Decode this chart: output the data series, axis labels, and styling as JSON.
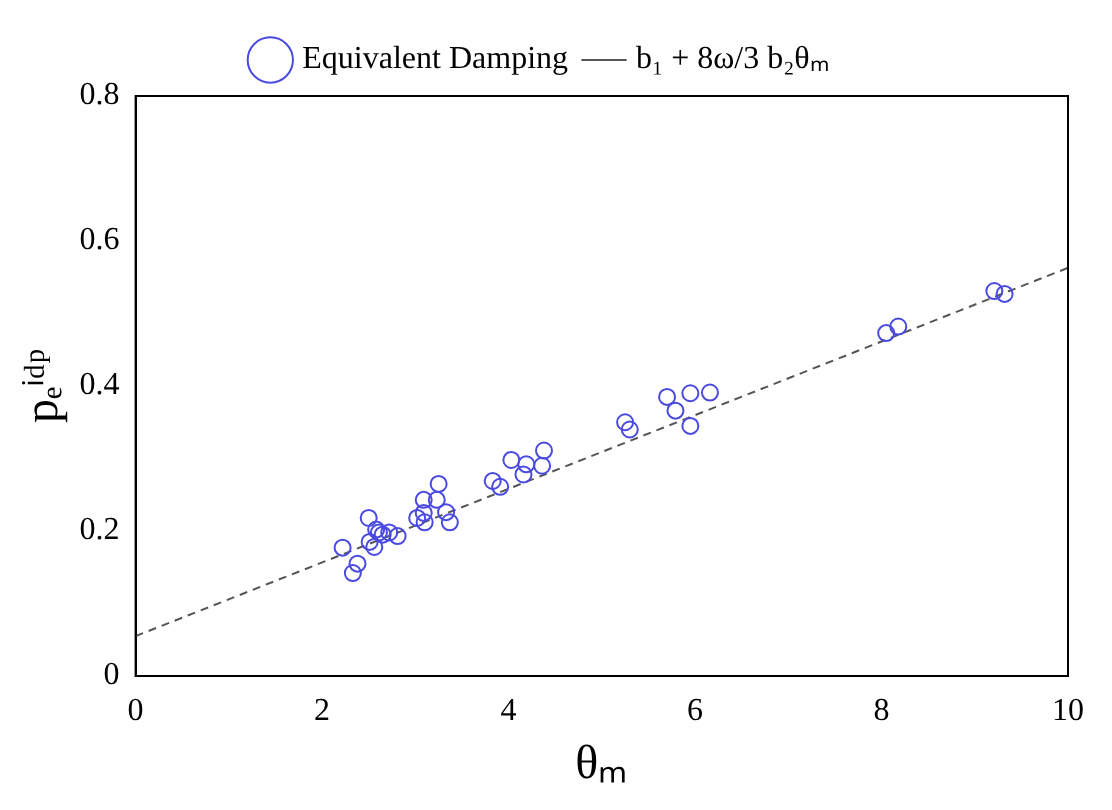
{
  "chart_data": {
    "type": "scatter",
    "xlabel": "θₘ",
    "ylabel": "pₑⁱᵈᵖ",
    "xlim": [
      0,
      10
    ],
    "ylim": [
      0,
      0.8
    ],
    "xticks": [
      0,
      2,
      4,
      6,
      8,
      10
    ],
    "yticks": [
      0,
      0.2,
      0.4,
      0.6,
      0.8
    ],
    "grid": false,
    "legend": "top",
    "marker": "circle",
    "series": [
      {
        "name": "Equivalent Damping",
        "color": "#4a4ae0",
        "x": [
          2.22,
          2.33,
          2.38,
          2.5,
          2.51,
          2.56,
          2.58,
          2.61,
          2.65,
          2.72,
          2.81,
          3.02,
          3.09,
          3.1,
          3.09,
          3.23,
          3.25,
          3.33,
          3.37,
          3.83,
          3.91,
          4.03,
          4.19,
          4.16,
          4.36,
          4.38,
          5.25,
          5.3,
          5.7,
          5.79,
          5.95,
          5.95,
          6.16,
          8.05,
          8.18,
          9.21,
          9.32
        ],
        "values": [
          0.177,
          0.142,
          0.155,
          0.218,
          0.185,
          0.178,
          0.202,
          0.198,
          0.195,
          0.198,
          0.193,
          0.218,
          0.243,
          0.212,
          0.225,
          0.243,
          0.265,
          0.226,
          0.212,
          0.269,
          0.261,
          0.298,
          0.292,
          0.278,
          0.29,
          0.311,
          0.35,
          0.34,
          0.385,
          0.366,
          0.39,
          0.345,
          0.391,
          0.473,
          0.482,
          0.531,
          0.527
        ]
      },
      {
        "name": "b₁ + 8ω/3 b₂θₘ",
        "type": "line",
        "color": "#555555",
        "line_style": "dashed",
        "marker": "none",
        "x": [
          0,
          10
        ],
        "values": [
          0.055,
          0.563
        ]
      }
    ]
  }
}
